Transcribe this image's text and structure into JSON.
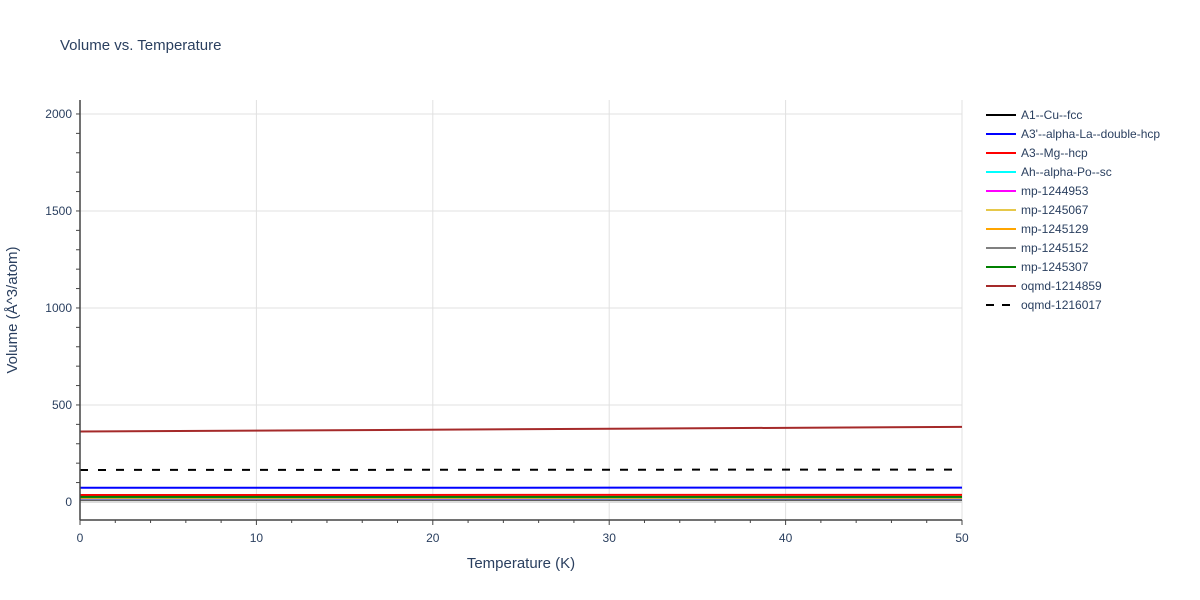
{
  "chart_data": {
    "type": "line",
    "title": "Volume vs. Temperature",
    "xlabel": "Temperature (K)",
    "ylabel": "Volume (Å^3/atom)",
    "xlim": [
      0,
      50
    ],
    "ylim": [
      -93,
      2072
    ],
    "xticks": [
      0,
      10,
      20,
      30,
      40,
      50
    ],
    "yticks": [
      0,
      500,
      1000,
      1500,
      2000
    ],
    "grid": true,
    "legend_position": "right",
    "x": [
      0,
      50
    ],
    "series": [
      {
        "name": "A1--Cu--fcc",
        "color": "#000000",
        "dash": false,
        "values": [
          12,
          12.3
        ]
      },
      {
        "name": "A3'--alpha-La--double-hcp",
        "color": "#0000ff",
        "dash": false,
        "values": [
          73,
          74
        ]
      },
      {
        "name": "A3--Mg--hcp",
        "color": "#ff0000",
        "dash": false,
        "values": [
          36,
          36.5
        ]
      },
      {
        "name": "Ah--alpha-Po--sc",
        "color": "#00ffff",
        "dash": false,
        "values": [
          16,
          16.3
        ]
      },
      {
        "name": "mp-1244953",
        "color": "#ff00ff",
        "dash": false,
        "values": [
          18,
          18.3
        ]
      },
      {
        "name": "mp-1245067",
        "color": "#e6c84a",
        "dash": false,
        "values": [
          20,
          20.3
        ]
      },
      {
        "name": "mp-1245129",
        "color": "#ffa500",
        "dash": false,
        "values": [
          22,
          22.3
        ]
      },
      {
        "name": "mp-1245152",
        "color": "#808080",
        "dash": false,
        "values": [
          24,
          24.3
        ]
      },
      {
        "name": "mp-1245307",
        "color": "#008000",
        "dash": false,
        "values": [
          26,
          26.3
        ]
      },
      {
        "name": "oqmd-1214859",
        "color": "#a52a2a",
        "dash": false,
        "values": [
          363,
          387
        ]
      },
      {
        "name": "oqmd-1216017",
        "color": "#000000",
        "dash": true,
        "values": [
          165,
          167
        ]
      }
    ]
  }
}
